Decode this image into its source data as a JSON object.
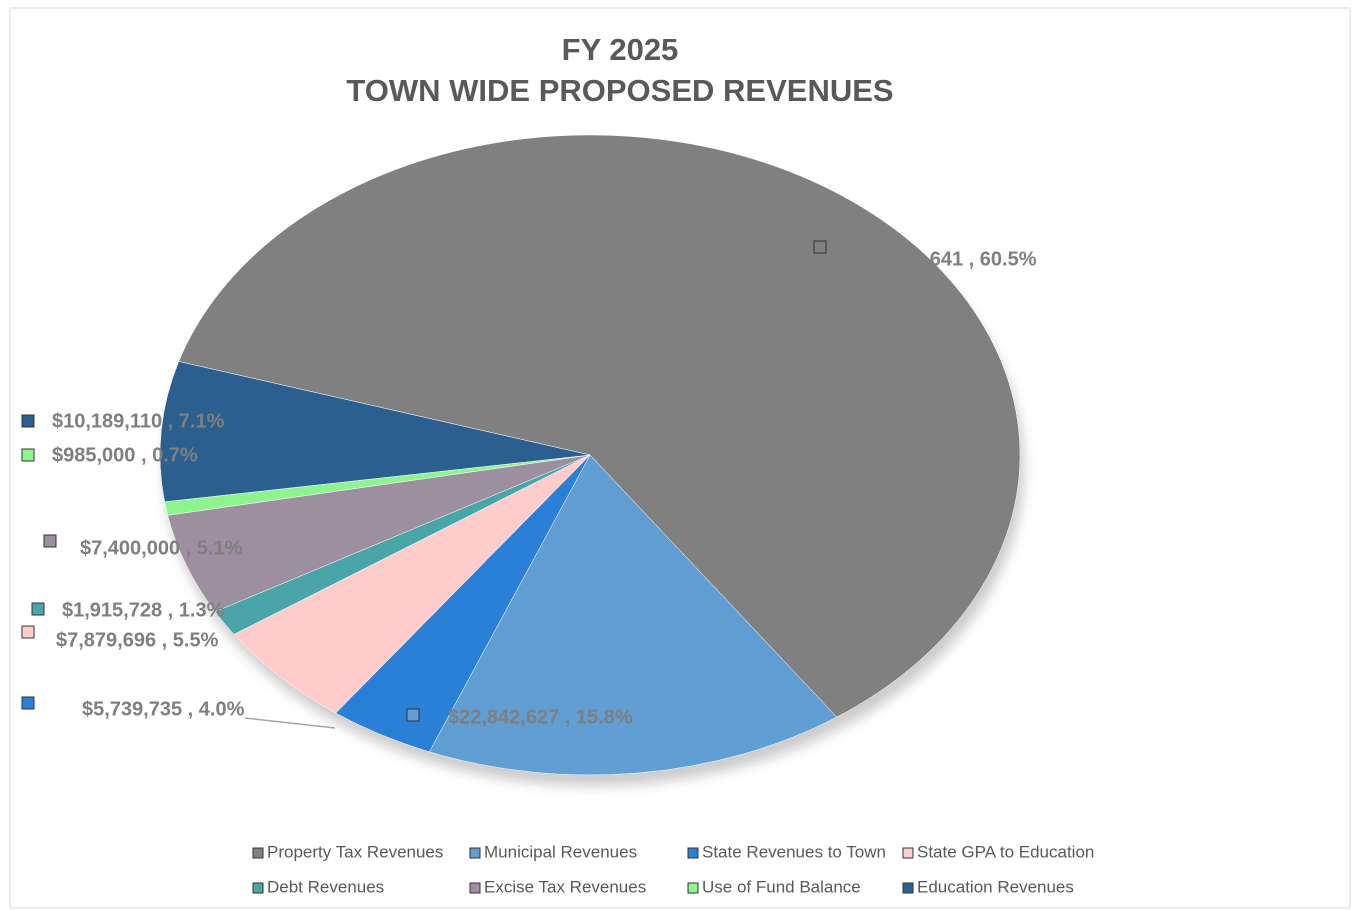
{
  "chart_data": {
    "type": "pie",
    "title": "FY 2025",
    "subtitle": "TOWN WIDE PROPOSED REVENUES",
    "categories": [
      "Property Tax Revenues",
      "Municipal Revenues",
      "State Revenues to Town",
      "State GPA to Education",
      "Debt Revenues",
      "Excise Tax Revenues",
      "Use of Fund Balance",
      "Education Revenues"
    ],
    "values": [
      87412641,
      22842627,
      5739735,
      7879696,
      1915728,
      7400000,
      985000,
      10189110
    ],
    "value_labels": [
      "87,412,641 , 60.5%",
      "$22,842,627 , 15.8%",
      "$5,739,735 , 4.0%",
      "$7,879,696 , 5.5%",
      "$1,915,728 , 1.3%",
      "$7,400,000 , 5.1%",
      "$985,000 , 0.7%",
      "$10,189,110 , 7.1%"
    ],
    "colors": [
      "#808080",
      "#619ed3",
      "#2a7fd6",
      "#ffcccc",
      "#4aa5a8",
      "#9b8fa0",
      "#8ef58e",
      "#2a5f8f"
    ],
    "legend": "bottom"
  }
}
